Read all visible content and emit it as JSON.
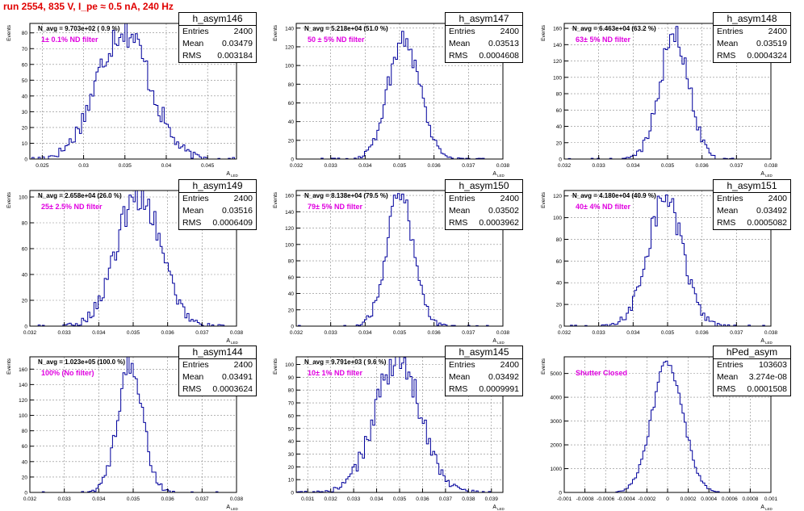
{
  "run_title": "run 2554,   835 V, I_pe ≈ 0.5 nA, 240 Hz",
  "axis_label_y": "Events",
  "axis_label_x": "A",
  "axis_label_x_sub": "LED",
  "colors": {
    "histogram": "#00009c",
    "title": "#e00000",
    "filter_label": "#e000e0",
    "grid": "#888888"
  },
  "chart_data": [
    {
      "type": "histogram",
      "name": "h_asym146",
      "navg": "N_avg = 9.703e+02 ( 0.9 %)",
      "filter": "1± 0.1% ND filter",
      "stats": {
        "entries": "2400",
        "mean": "0.03479",
        "rms": "0.003184"
      },
      "xlim": [
        0.0235,
        0.0485
      ],
      "ylim": [
        0,
        86
      ],
      "mean": 0.03479,
      "rms": 0.003184,
      "entries": 2400,
      "peak": 83,
      "xticks": [
        "0.025",
        "0.03",
        "0.035",
        "0.04",
        "0.045"
      ],
      "xtickvals": [
        0.025,
        0.03,
        0.035,
        0.04,
        0.045
      ],
      "yticks": [
        "0",
        "10",
        "20",
        "30",
        "40",
        "50",
        "60",
        "70",
        "80"
      ],
      "ytickvals": [
        0,
        10,
        20,
        30,
        40,
        50,
        60,
        70,
        80
      ]
    },
    {
      "type": "histogram",
      "name": "h_asym147",
      "navg": "N_avg = 5.218e+04 (51.0 %)",
      "filter": "50 ± 5% ND filter",
      "stats": {
        "entries": "2400",
        "mean": "0.03513",
        "rms": "0.0004608"
      },
      "xlim": [
        0.032,
        0.038
      ],
      "ylim": [
        0,
        145
      ],
      "mean": 0.03513,
      "rms": 0.0004608,
      "entries": 2400,
      "peak": 130,
      "xticks": [
        "0.032",
        "0.033",
        "0.034",
        "0.035",
        "0.036",
        "0.037",
        "0.038"
      ],
      "xtickvals": [
        0.032,
        0.033,
        0.034,
        0.035,
        0.036,
        0.037,
        0.038
      ],
      "yticks": [
        "0",
        "20",
        "40",
        "60",
        "80",
        "100",
        "120",
        "140"
      ],
      "ytickvals": [
        0,
        20,
        40,
        60,
        80,
        100,
        120,
        140
      ]
    },
    {
      "type": "histogram",
      "name": "h_asym148",
      "navg": "N_avg = 6.463e+04 (63.2 %)",
      "filter": "63± 5% ND filter",
      "stats": {
        "entries": "2400",
        "mean": "0.03519",
        "rms": "0.0004324"
      },
      "xlim": [
        0.032,
        0.038
      ],
      "ylim": [
        0,
        166
      ],
      "mean": 0.03519,
      "rms": 0.0004324,
      "entries": 2400,
      "peak": 150,
      "xticks": [
        "0.032",
        "0.033",
        "0.034",
        "0.035",
        "0.036",
        "0.037",
        "0.038"
      ],
      "xtickvals": [
        0.032,
        0.033,
        0.034,
        0.035,
        0.036,
        0.037,
        0.038
      ],
      "yticks": [
        "0",
        "20",
        "40",
        "60",
        "80",
        "100",
        "120",
        "140",
        "160"
      ],
      "ytickvals": [
        0,
        20,
        40,
        60,
        80,
        100,
        120,
        140,
        160
      ]
    },
    {
      "type": "histogram",
      "name": "h_asym149",
      "navg": "N_avg = 2.658e+04 (26.0 %)",
      "filter": "25± 2.5% ND filter",
      "stats": {
        "entries": "2400",
        "mean": "0.03516",
        "rms": "0.0006409"
      },
      "xlim": [
        0.032,
        0.038
      ],
      "ylim": [
        0,
        105
      ],
      "mean": 0.03516,
      "rms": 0.0006409,
      "entries": 2400,
      "peak": 102,
      "xticks": [
        "0.032",
        "0.033",
        "0.034",
        "0.035",
        "0.036",
        "0.037",
        "0.038"
      ],
      "xtickvals": [
        0.032,
        0.033,
        0.034,
        0.035,
        0.036,
        0.037,
        0.038
      ],
      "yticks": [
        "0",
        "20",
        "40",
        "60",
        "80",
        "100"
      ],
      "ytickvals": [
        0,
        20,
        40,
        60,
        80,
        100
      ]
    },
    {
      "type": "histogram",
      "name": "h_asym150",
      "navg": "N_avg = 8.138e+04 (79.5 %)",
      "filter": "79± 5% ND filter",
      "stats": {
        "entries": "2400",
        "mean": "0.03502",
        "rms": "0.0003962"
      },
      "xlim": [
        0.032,
        0.038
      ],
      "ylim": [
        0,
        166
      ],
      "mean": 0.03502,
      "rms": 0.0003962,
      "entries": 2400,
      "peak": 160,
      "xticks": [
        "0.032",
        "0.033",
        "0.034",
        "0.035",
        "0.036",
        "0.037",
        "0.038"
      ],
      "xtickvals": [
        0.032,
        0.033,
        0.034,
        0.035,
        0.036,
        0.037,
        0.038
      ],
      "yticks": [
        "0",
        "20",
        "40",
        "60",
        "80",
        "100",
        "120",
        "140",
        "160"
      ],
      "ytickvals": [
        0,
        20,
        40,
        60,
        80,
        100,
        120,
        140,
        160
      ]
    },
    {
      "type": "histogram",
      "name": "h_asym151",
      "navg": "N_avg = 4.180e+04 (40.9 %)",
      "filter": "40± 4% ND filter",
      "stats": {
        "entries": "2400",
        "mean": "0.03492",
        "rms": "0.0005082"
      },
      "xlim": [
        0.032,
        0.038
      ],
      "ylim": [
        0,
        125
      ],
      "mean": 0.03492,
      "rms": 0.0005082,
      "entries": 2400,
      "peak": 118,
      "xticks": [
        "0.032",
        "0.033",
        "0.034",
        "0.035",
        "0.036",
        "0.037",
        "0.038"
      ],
      "xtickvals": [
        0.032,
        0.033,
        0.034,
        0.035,
        0.036,
        0.037,
        0.038
      ],
      "yticks": [
        "0",
        "20",
        "40",
        "60",
        "80",
        "100",
        "120"
      ],
      "ytickvals": [
        0,
        20,
        40,
        60,
        80,
        100,
        120
      ]
    },
    {
      "type": "histogram",
      "name": "h_asym144",
      "navg": "N_avg = 1.023e+05 (100.0 %)",
      "filter": "100% (No filter)",
      "stats": {
        "entries": "2400",
        "mean": "0.03491",
        "rms": "0.0003624"
      },
      "xlim": [
        0.032,
        0.038
      ],
      "ylim": [
        0,
        176
      ],
      "mean": 0.03491,
      "rms": 0.0003624,
      "entries": 2400,
      "peak": 165,
      "xticks": [
        "0.032",
        "0.033",
        "0.034",
        "0.035",
        "0.036",
        "0.037",
        "0.038"
      ],
      "xtickvals": [
        0.032,
        0.033,
        0.034,
        0.035,
        0.036,
        0.037,
        0.038
      ],
      "yticks": [
        "0",
        "20",
        "40",
        "60",
        "80",
        "100",
        "120",
        "140",
        "160"
      ],
      "ytickvals": [
        0,
        20,
        40,
        60,
        80,
        100,
        120,
        140,
        160
      ]
    },
    {
      "type": "histogram",
      "name": "h_asym145",
      "navg": "N_avg = 9.791e+03 ( 9.6 %)",
      "filter": "10± 1% ND filter",
      "stats": {
        "entries": "2400",
        "mean": "0.03492",
        "rms": "0.0009991"
      },
      "xlim": [
        0.0305,
        0.0395
      ],
      "ylim": [
        0,
        106
      ],
      "mean": 0.03492,
      "rms": 0.0009991,
      "entries": 2400,
      "peak": 103,
      "xticks": [
        "0.031",
        "0.032",
        "0.033",
        "0.034",
        "0.035",
        "0.036",
        "0.037",
        "0.038",
        "0.039"
      ],
      "xtickvals": [
        0.031,
        0.032,
        0.033,
        0.034,
        0.035,
        0.036,
        0.037,
        0.038,
        0.039
      ],
      "yticks": [
        "0",
        "10",
        "20",
        "30",
        "40",
        "50",
        "60",
        "70",
        "80",
        "90",
        "100"
      ],
      "ytickvals": [
        0,
        10,
        20,
        30,
        40,
        50,
        60,
        70,
        80,
        90,
        100
      ]
    },
    {
      "type": "histogram",
      "name": "hPed_asym",
      "navg": "",
      "filter": "Shutter Closed",
      "stats": {
        "entries": "103603",
        "mean": "3.274e-08",
        "rms": "0.0001508"
      },
      "xlim": [
        -0.001,
        0.001
      ],
      "ylim": [
        0,
        5700
      ],
      "mean": 0.0,
      "rms": 0.0001508,
      "entries": 103603,
      "peak": 5450,
      "xticks": [
        "-0.001",
        "-0.0008",
        "-0.0006",
        "-0.0004",
        "-0.0002",
        "0",
        "0.0002",
        "0.0004",
        "0.0006",
        "0.0008",
        "0.001"
      ],
      "xtickvals": [
        -0.001,
        -0.0008,
        -0.0006,
        -0.0004,
        -0.0002,
        0,
        0.0002,
        0.0004,
        0.0006,
        0.0008,
        0.001
      ],
      "yticks": [
        "0",
        "1000",
        "2000",
        "3000",
        "4000",
        "5000"
      ],
      "ytickvals": [
        0,
        1000,
        2000,
        3000,
        4000,
        5000
      ]
    }
  ]
}
